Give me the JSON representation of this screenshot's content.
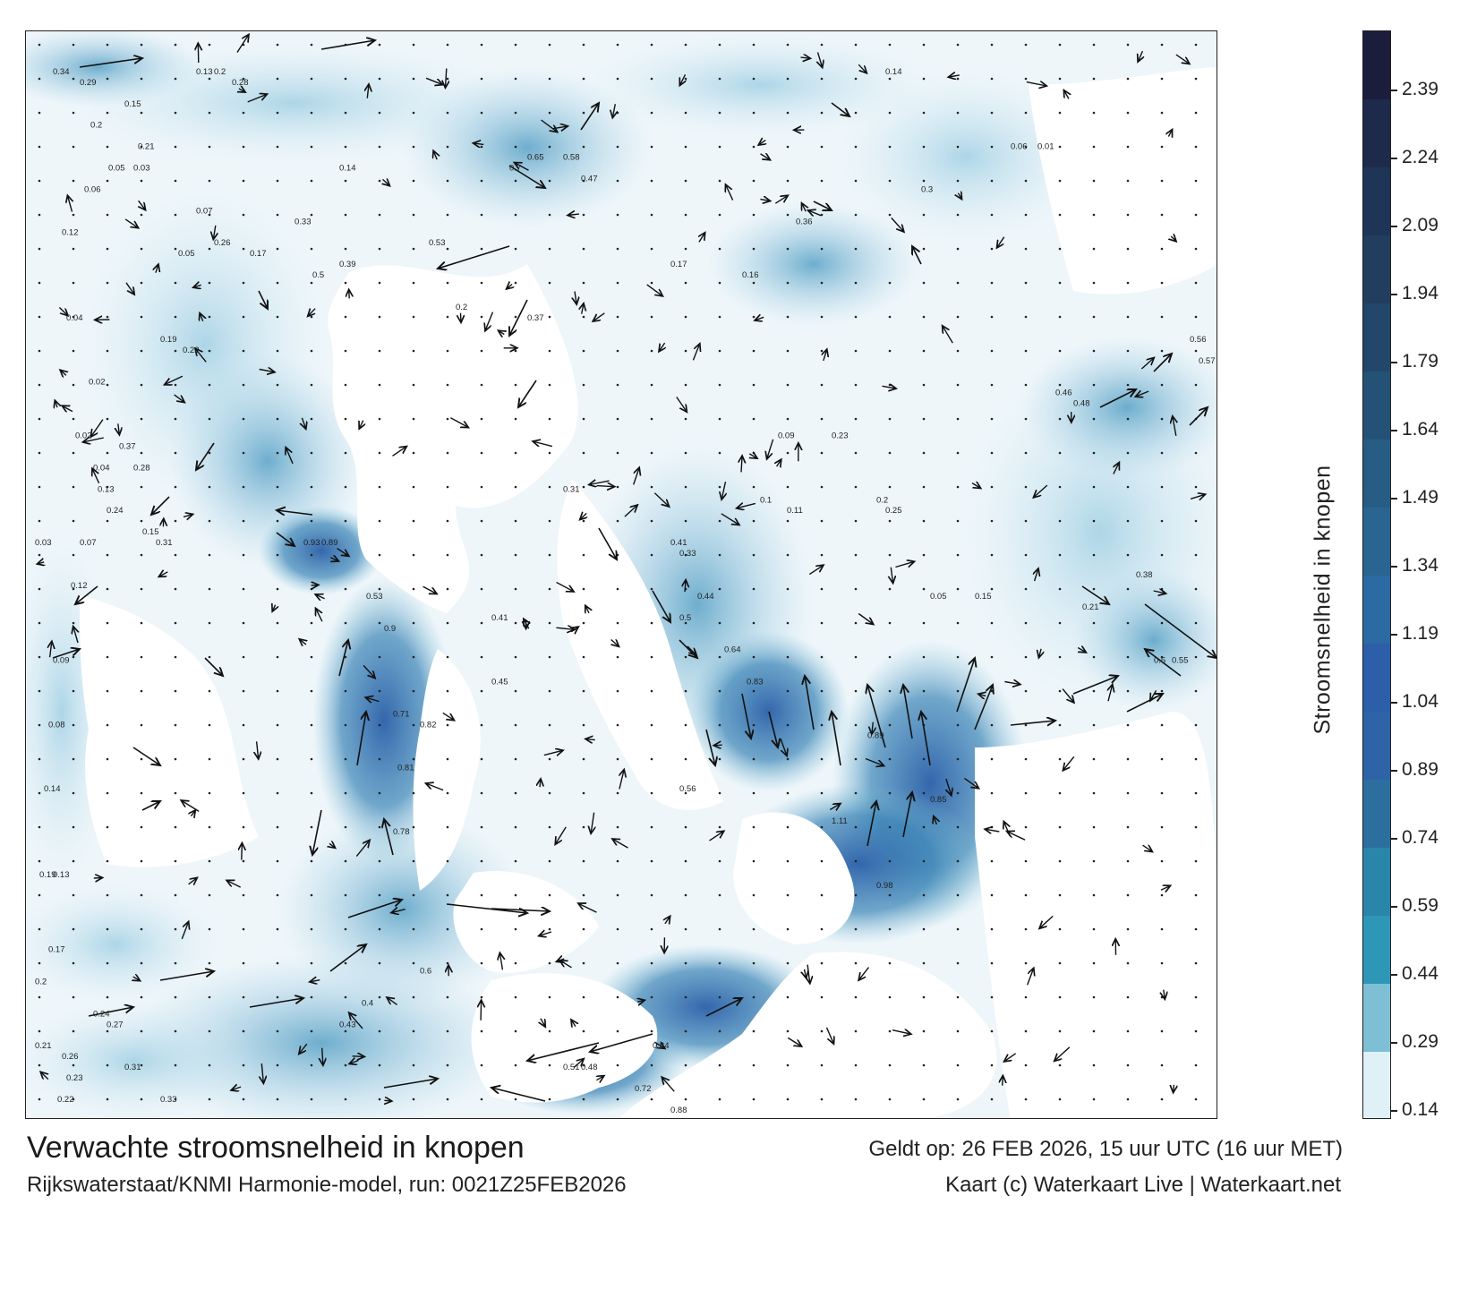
{
  "title": "Verwachte stroomsnelheid in knopen",
  "subtitle": "Rijkswaterstaat/KNMI Harmonie-model, run: 0021Z25FEB2026",
  "valid_time": "Geldt op: 26 FEB 2026, 15 uur UTC (16 uur MET)",
  "credit": "Kaart (c) Waterkaart Live | Waterkaart.net",
  "colorbar": {
    "label": "Stroomsnelheid in knopen",
    "ticks": [
      "2.39",
      "2.24",
      "2.09",
      "1.94",
      "1.79",
      "1.64",
      "1.49",
      "1.34",
      "1.19",
      "1.04",
      "0.89",
      "0.74",
      "0.59",
      "0.44",
      "0.29",
      "0.14"
    ],
    "colors": [
      "#1c1c3c",
      "#1e2a4c",
      "#1f3558",
      "#213e5e",
      "#22476a",
      "#245276",
      "#275c84",
      "#2a6592",
      "#2b6aa3",
      "#2d5ea9",
      "#2f63a8",
      "#2c6f9e",
      "#2a85aa",
      "#2e97b8",
      "#7fbfd6",
      "#dff0f7"
    ]
  },
  "map": {
    "water_color": "#f2f8fb",
    "land_color": "#ffffff",
    "sample_labels": [
      {
        "t": "0.34",
        "x": 30,
        "y": 3
      },
      {
        "t": "0.29",
        "x": 60,
        "y": 4
      },
      {
        "t": "0.15",
        "x": 110,
        "y": 6
      },
      {
        "t": "0.2",
        "x": 72,
        "y": 8
      },
      {
        "t": "0.21",
        "x": 125,
        "y": 10
      },
      {
        "t": "0.12",
        "x": 40,
        "y": 18
      },
      {
        "t": "0.05",
        "x": 92,
        "y": 12
      },
      {
        "t": "0.13",
        "x": 190,
        "y": 3
      },
      {
        "t": "0.2",
        "x": 210,
        "y": 3
      },
      {
        "t": "0.28",
        "x": 230,
        "y": 4
      },
      {
        "t": "0.14",
        "x": 350,
        "y": 12
      },
      {
        "t": "0.17",
        "x": 250,
        "y": 20
      },
      {
        "t": "0.93",
        "x": 310,
        "y": 47
      },
      {
        "t": "0.89",
        "x": 330,
        "y": 47
      },
      {
        "t": "0.64",
        "x": 780,
        "y": 57
      },
      {
        "t": "0.83",
        "x": 805,
        "y": 60
      },
      {
        "t": "0.89",
        "x": 940,
        "y": 65
      },
      {
        "t": "0.85",
        "x": 1010,
        "y": 71
      },
      {
        "t": "1.11",
        "x": 900,
        "y": 73
      },
      {
        "t": "0.98",
        "x": 950,
        "y": 79
      },
      {
        "t": "0.88",
        "x": 720,
        "y": 100
      },
      {
        "t": "0.84",
        "x": 700,
        "y": 94
      },
      {
        "t": "0.72",
        "x": 680,
        "y": 98
      },
      {
        "t": "0.56",
        "x": 730,
        "y": 70
      },
      {
        "t": "0.48",
        "x": 620,
        "y": 96
      },
      {
        "t": "0.51",
        "x": 600,
        "y": 96
      },
      {
        "t": "0.43",
        "x": 350,
        "y": 92
      },
      {
        "t": "0.4",
        "x": 375,
        "y": 90
      },
      {
        "t": "0.6",
        "x": 440,
        "y": 87
      },
      {
        "t": "0.24",
        "x": 75,
        "y": 91
      },
      {
        "t": "0.27",
        "x": 90,
        "y": 92
      },
      {
        "t": "0.31",
        "x": 110,
        "y": 96
      },
      {
        "t": "0.45",
        "x": 520,
        "y": 60
      },
      {
        "t": "0.41",
        "x": 520,
        "y": 54
      },
      {
        "t": "0.82",
        "x": 440,
        "y": 64
      },
      {
        "t": "0.71",
        "x": 410,
        "y": 63
      },
      {
        "t": "0.81",
        "x": 415,
        "y": 68
      },
      {
        "t": "0.78",
        "x": 410,
        "y": 74
      },
      {
        "t": "0.3",
        "x": 1000,
        "y": 14
      },
      {
        "t": "0.14",
        "x": 960,
        "y": 3
      },
      {
        "t": "0.16",
        "x": 800,
        "y": 22
      },
      {
        "t": "0.17",
        "x": 720,
        "y": 21
      },
      {
        "t": "0.36",
        "x": 860,
        "y": 17
      },
      {
        "t": "0.46",
        "x": 1150,
        "y": 33
      },
      {
        "t": "0.48",
        "x": 1170,
        "y": 34
      },
      {
        "t": "0.38",
        "x": 1240,
        "y": 50
      },
      {
        "t": "0.5",
        "x": 1260,
        "y": 58
      },
      {
        "t": "0.55",
        "x": 1280,
        "y": 58
      },
      {
        "t": "0.56",
        "x": 1300,
        "y": 28
      },
      {
        "t": "0.57",
        "x": 1310,
        "y": 30
      },
      {
        "t": "0.01",
        "x": 1130,
        "y": 10
      },
      {
        "t": "0.06",
        "x": 1100,
        "y": 10
      },
      {
        "t": "0.2",
        "x": 950,
        "y": 43
      },
      {
        "t": "0.25",
        "x": 960,
        "y": 44
      },
      {
        "t": "0.05",
        "x": 1010,
        "y": 52
      },
      {
        "t": "0.15",
        "x": 1060,
        "y": 52
      },
      {
        "t": "0.09",
        "x": 840,
        "y": 37
      },
      {
        "t": "0.23",
        "x": 900,
        "y": 37
      },
      {
        "t": "0.1",
        "x": 820,
        "y": 43
      },
      {
        "t": "0.11",
        "x": 850,
        "y": 44
      },
      {
        "t": "0.33",
        "x": 730,
        "y": 48
      },
      {
        "t": "0.44",
        "x": 750,
        "y": 52
      },
      {
        "t": "0.5",
        "x": 730,
        "y": 54
      },
      {
        "t": "0.21",
        "x": 1180,
        "y": 53
      },
      {
        "t": "0.12",
        "x": 50,
        "y": 51
      },
      {
        "t": "0.09",
        "x": 30,
        "y": 58
      },
      {
        "t": "0.08",
        "x": 25,
        "y": 64
      },
      {
        "t": "0.14",
        "x": 20,
        "y": 70
      },
      {
        "t": "0.19",
        "x": 15,
        "y": 78
      },
      {
        "t": "0.13",
        "x": 30,
        "y": 78
      },
      {
        "t": "0.17",
        "x": 25,
        "y": 85
      },
      {
        "t": "0.2",
        "x": 10,
        "y": 88
      },
      {
        "t": "0.21",
        "x": 10,
        "y": 94
      },
      {
        "t": "0.26",
        "x": 40,
        "y": 95
      },
      {
        "t": "0.23",
        "x": 45,
        "y": 97
      },
      {
        "t": "0.22",
        "x": 35,
        "y": 99
      },
      {
        "t": "0.33",
        "x": 150,
        "y": 99
      },
      {
        "t": "0.03",
        "x": 120,
        "y": 12
      },
      {
        "t": "0.07",
        "x": 190,
        "y": 16
      },
      {
        "t": "0.05",
        "x": 170,
        "y": 20
      },
      {
        "t": "0.06",
        "x": 65,
        "y": 14
      },
      {
        "t": "0.04",
        "x": 45,
        "y": 26
      },
      {
        "t": "0.02",
        "x": 55,
        "y": 37
      },
      {
        "t": "0.02",
        "x": 70,
        "y": 32
      },
      {
        "t": "0.04",
        "x": 75,
        "y": 40
      },
      {
        "t": "0.07",
        "x": 60,
        "y": 47
      },
      {
        "t": "0.03",
        "x": 10,
        "y": 47
      },
      {
        "t": "0.13",
        "x": 80,
        "y": 42
      },
      {
        "t": "0.24",
        "x": 90,
        "y": 44
      },
      {
        "t": "0.15",
        "x": 130,
        "y": 46
      },
      {
        "t": "0.37",
        "x": 104,
        "y": 38
      },
      {
        "t": "0.28",
        "x": 120,
        "y": 40
      },
      {
        "t": "0.31",
        "x": 145,
        "y": 47
      },
      {
        "t": "0.19",
        "x": 150,
        "y": 28
      },
      {
        "t": "0.22",
        "x": 175,
        "y": 29
      },
      {
        "t": "0.26",
        "x": 210,
        "y": 19
      },
      {
        "t": "0.33",
        "x": 300,
        "y": 17
      },
      {
        "t": "0.39",
        "x": 350,
        "y": 21
      },
      {
        "t": "0.5",
        "x": 320,
        "y": 22
      },
      {
        "t": "0.53",
        "x": 450,
        "y": 19
      },
      {
        "t": "0.2",
        "x": 480,
        "y": 25
      },
      {
        "t": "0.37",
        "x": 560,
        "y": 26
      },
      {
        "t": "0.47",
        "x": 620,
        "y": 13
      },
      {
        "t": "0.58",
        "x": 600,
        "y": 11
      },
      {
        "t": "0.65",
        "x": 560,
        "y": 11
      },
      {
        "t": "0.7",
        "x": 540,
        "y": 12
      },
      {
        "t": "0.31",
        "x": 600,
        "y": 42
      },
      {
        "t": "0.41",
        "x": 720,
        "y": 47
      },
      {
        "t": "0.9",
        "x": 400,
        "y": 55
      },
      {
        "t": "0.53",
        "x": 380,
        "y": 52
      }
    ]
  }
}
